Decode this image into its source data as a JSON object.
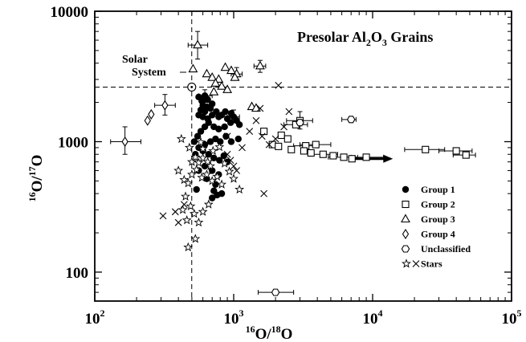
{
  "chart_data": {
    "type": "scatter",
    "title": "Presolar Al2O3 Grains",
    "title_parts": {
      "pre": "Presolar Al",
      "sub1": "2",
      "mid": "O",
      "sub2": "3",
      "post": " Grains"
    },
    "xlabel": "16O/18O",
    "ylabel": "16O/17O",
    "xlabel_parts": {
      "sup1": "16",
      "a": "O/",
      "sup2": "18",
      "b": "O"
    },
    "ylabel_parts": {
      "sup1": "16",
      "a": "O/",
      "sup2": "17",
      "b": "O"
    },
    "x_scale": "log",
    "y_scale": "log",
    "xlim": [
      100,
      100000
    ],
    "ylim": [
      60,
      10000
    ],
    "x_ticks": [
      {
        "value": 100,
        "base": "10",
        "exp": "2"
      },
      {
        "value": 1000,
        "base": "10",
        "exp": "3"
      },
      {
        "value": 10000,
        "base": "10",
        "exp": "4"
      },
      {
        "value": 100000,
        "base": "10",
        "exp": "5"
      }
    ],
    "y_ticks": [
      {
        "value": 100,
        "label": "100"
      },
      {
        "value": 1000,
        "label": "1000"
      },
      {
        "value": 10000,
        "label": "10000"
      }
    ],
    "reference_lines": {
      "solar_x": 499,
      "solar_y": 2622
    },
    "annotation": {
      "line1": "Solar",
      "line2": "System"
    },
    "legend_position": "bottom-right",
    "series": [
      {
        "name": "Group 1",
        "marker": "filled-circle",
        "points": [
          [
            560,
            2200
          ],
          [
            590,
            2050
          ],
          [
            620,
            2250
          ],
          [
            650,
            2100
          ],
          [
            600,
            1900
          ],
          [
            640,
            1850
          ],
          [
            580,
            1750
          ],
          [
            620,
            1700
          ],
          [
            680,
            1800
          ],
          [
            700,
            1950
          ],
          [
            560,
            1600
          ],
          [
            600,
            1550
          ],
          [
            650,
            1500
          ],
          [
            700,
            1600
          ],
          [
            750,
            1700
          ],
          [
            780,
            1550
          ],
          [
            820,
            1600
          ],
          [
            870,
            1700
          ],
          [
            900,
            1500
          ],
          [
            960,
            1650
          ],
          [
            1000,
            1550
          ],
          [
            1050,
            1450
          ],
          [
            1100,
            1350
          ],
          [
            950,
            1400
          ],
          [
            860,
            1300
          ],
          [
            780,
            1250
          ],
          [
            720,
            1300
          ],
          [
            660,
            1400
          ],
          [
            620,
            1300
          ],
          [
            580,
            1200
          ],
          [
            550,
            1100
          ],
          [
            520,
            1000
          ],
          [
            560,
            900
          ],
          [
            620,
            950
          ],
          [
            680,
            1000
          ],
          [
            740,
            1050
          ],
          [
            800,
            1000
          ],
          [
            880,
            1100
          ],
          [
            960,
            1000
          ],
          [
            1080,
            1050
          ],
          [
            530,
            800
          ],
          [
            600,
            850
          ],
          [
            660,
            800
          ],
          [
            720,
            750
          ],
          [
            790,
            720
          ],
          [
            850,
            780
          ],
          [
            900,
            700
          ],
          [
            560,
            600
          ],
          [
            620,
            650
          ],
          [
            700,
            600
          ],
          [
            780,
            560
          ],
          [
            640,
            520
          ],
          [
            740,
            470
          ],
          [
            820,
            400
          ],
          [
            720,
            420
          ],
          [
            540,
            430
          ],
          [
            700,
            370
          ],
          [
            760,
            390
          ]
        ]
      },
      {
        "name": "Group 2",
        "marker": "open-square",
        "points": [
          [
            1650,
            1200
          ],
          [
            2200,
            1120
          ],
          [
            2450,
            1050
          ],
          [
            2800,
            1350
          ],
          [
            3000,
            1450
          ],
          [
            3300,
            930
          ],
          [
            3900,
            950
          ],
          [
            1900,
            950
          ],
          [
            2100,
            920
          ],
          [
            2600,
            870
          ],
          [
            3200,
            850
          ],
          [
            3600,
            820
          ],
          [
            4400,
            800
          ],
          [
            5200,
            780
          ],
          [
            6200,
            760
          ],
          [
            7100,
            740
          ],
          [
            9000,
            760
          ],
          [
            24000,
            870
          ],
          [
            40000,
            850
          ],
          [
            47000,
            790
          ]
        ]
      },
      {
        "name": "Group 3",
        "marker": "open-triangle",
        "points": [
          [
            550,
            5500
          ],
          [
            510,
            3600
          ],
          [
            640,
            3300
          ],
          [
            700,
            3100
          ],
          [
            780,
            3000
          ],
          [
            870,
            3700
          ],
          [
            960,
            3500
          ],
          [
            1050,
            3300
          ],
          [
            1020,
            3100
          ],
          [
            1550,
            3800
          ],
          [
            740,
            2800
          ],
          [
            720,
            2400
          ],
          [
            820,
            2650
          ],
          [
            900,
            2500
          ],
          [
            1350,
            1850
          ],
          [
            1450,
            1800
          ]
        ]
      },
      {
        "name": "Group 4",
        "marker": "open-diamond",
        "points": [
          [
            165,
            1000
          ],
          [
            320,
            1900
          ],
          [
            240,
            1450
          ],
          [
            255,
            1620
          ]
        ]
      },
      {
        "name": "Unclassified",
        "marker": "open-hexagon",
        "points": [
          [
            2000,
            70
          ],
          [
            7000,
            1480
          ],
          [
            3000,
            1400
          ]
        ]
      },
      {
        "name": "Stars",
        "marker": "star",
        "points": [
          [
            440,
            510
          ],
          [
            470,
            480
          ],
          [
            500,
            560
          ],
          [
            540,
            610
          ],
          [
            590,
            530
          ],
          [
            640,
            560
          ],
          [
            700,
            500
          ],
          [
            760,
            540
          ],
          [
            820,
            470
          ],
          [
            450,
            380
          ],
          [
            490,
            320
          ],
          [
            520,
            280
          ],
          [
            560,
            240
          ],
          [
            600,
            290
          ],
          [
            660,
            330
          ],
          [
            460,
            250
          ],
          [
            430,
            300
          ],
          [
            470,
            155
          ],
          [
            530,
            180
          ],
          [
            500,
            700
          ],
          [
            530,
            760
          ],
          [
            560,
            690
          ],
          [
            600,
            750
          ],
          [
            650,
            700
          ],
          [
            600,
            880
          ],
          [
            680,
            650
          ],
          [
            580,
            990
          ],
          [
            710,
            850
          ],
          [
            790,
            910
          ],
          [
            860,
            680
          ],
          [
            930,
            590
          ],
          [
            1000,
            520
          ],
          [
            1100,
            430
          ],
          [
            420,
            1050
          ],
          [
            480,
            900
          ],
          [
            400,
            600
          ]
        ]
      },
      {
        "name": "Stars",
        "marker": "cross",
        "points": [
          [
            310,
            270
          ],
          [
            380,
            290
          ],
          [
            400,
            240
          ],
          [
            440,
            330
          ],
          [
            900,
            800
          ],
          [
            1000,
            650
          ],
          [
            1150,
            900
          ],
          [
            1300,
            1200
          ],
          [
            1650,
            400
          ],
          [
            1550,
            1800
          ],
          [
            2100,
            2700
          ],
          [
            2500,
            1700
          ],
          [
            2300,
            1300
          ],
          [
            2000,
            1050
          ],
          [
            1800,
            950
          ],
          [
            1600,
            1100
          ],
          [
            1450,
            1450
          ],
          [
            900,
            1100
          ],
          [
            950,
            720
          ],
          [
            1050,
            600
          ]
        ]
      }
    ],
    "error_bars": [
      {
        "x": 550,
        "y": 5500,
        "xlo": 470,
        "xhi": 650,
        "ylo": 4300,
        "yhi": 7000
      },
      {
        "x": 165,
        "y": 1000,
        "xlo": 130,
        "xhi": 215,
        "ylo": 800,
        "yhi": 1300
      },
      {
        "x": 320,
        "y": 1900,
        "xlo": 270,
        "xhi": 380,
        "ylo": 1600,
        "yhi": 2300
      },
      {
        "x": 2000,
        "y": 70,
        "xlo": 1500,
        "xhi": 2700
      },
      {
        "x": 7000,
        "y": 1480,
        "xlo": 6000,
        "xhi": 7600
      },
      {
        "x": 24000,
        "y": 870,
        "xlo": 17000,
        "xhi": 33000
      },
      {
        "x": 40000,
        "y": 850,
        "xlo": 30000,
        "xhi": 52000
      },
      {
        "x": 47000,
        "y": 790,
        "xlo": 38000,
        "xhi": 55000
      },
      {
        "x": 9000,
        "y": 760,
        "xlo": 7000,
        "xhi": 12000
      },
      {
        "x": 6200,
        "y": 760,
        "xlo": 4800,
        "xhi": 7800
      },
      {
        "x": 4400,
        "y": 800,
        "xlo": 3500,
        "xhi": 5600
      },
      {
        "x": 3900,
        "y": 950,
        "xlo": 3000,
        "xhi": 5000
      },
      {
        "x": 3000,
        "y": 1450,
        "xlo": 2400,
        "xhi": 3700,
        "ylo": 1250,
        "yhi": 1700
      },
      {
        "x": 2800,
        "y": 1350,
        "xlo": 2300,
        "xhi": 3400
      },
      {
        "x": 3300,
        "y": 930,
        "xlo": 2700,
        "xhi": 4000
      },
      {
        "x": 1550,
        "y": 3800,
        "xlo": 1400,
        "xhi": 1700,
        "ylo": 3400,
        "yhi": 4200
      },
      {
        "x": 1050,
        "y": 3300,
        "xlo": 960,
        "xhi": 1150,
        "ylo": 3000,
        "yhi": 3700
      },
      {
        "x": 620,
        "y": 2250,
        "xlo": 560,
        "xhi": 700,
        "ylo": 2000,
        "yhi": 2500
      },
      {
        "x": 1000,
        "y": 1550,
        "xlo": 900,
        "xhi": 1100,
        "ylo": 1400,
        "yhi": 1750
      }
    ],
    "arrow": {
      "from": [
        7100,
        740
      ],
      "to": [
        14000,
        740
      ]
    }
  },
  "legend": {
    "items": [
      {
        "label": "Group 1",
        "marker": "filled-circle"
      },
      {
        "label": "Group 2",
        "marker": "open-square"
      },
      {
        "label": "Group 3",
        "marker": "open-triangle"
      },
      {
        "label": "Group 4",
        "marker": "open-diamond"
      },
      {
        "label": "Unclassified",
        "marker": "open-hexagon"
      },
      {
        "label": "Stars",
        "marker": "star-cross"
      }
    ]
  }
}
